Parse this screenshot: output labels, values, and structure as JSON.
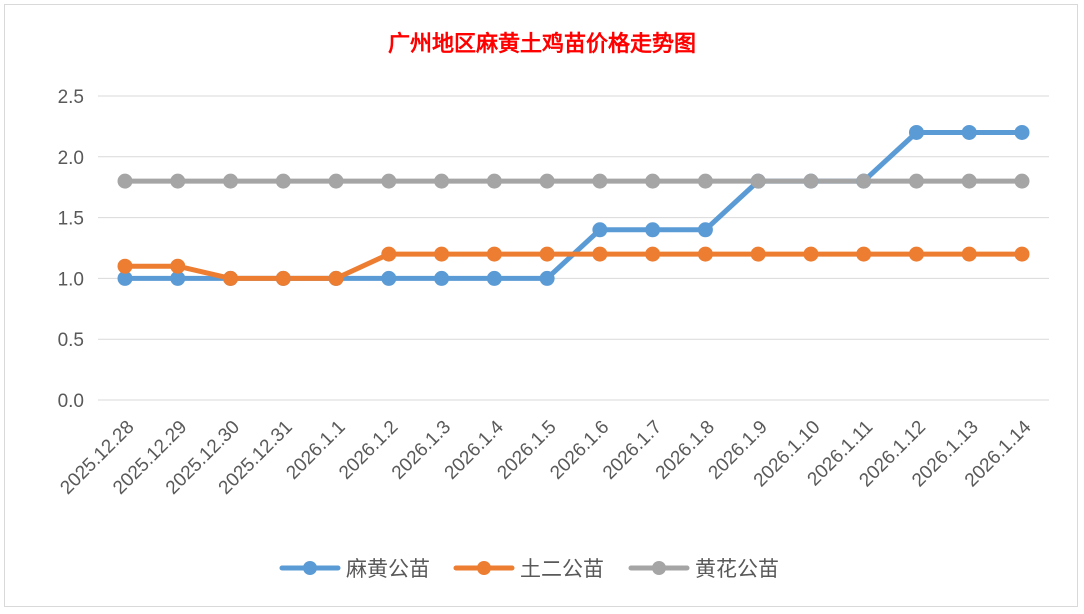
{
  "chart_data": {
    "type": "line",
    "title": "广州地区麻黄土鸡苗价格走势图",
    "xlabel": "",
    "ylabel": "",
    "ylim": [
      0,
      2.5
    ],
    "yticks": [
      "0.0",
      "0.5",
      "1.0",
      "1.5",
      "2.0",
      "2.5"
    ],
    "grid": true,
    "legend_position": "bottom",
    "categories": [
      "2025.12.28",
      "2025.12.29",
      "2025.12.30",
      "2025.12.31",
      "2026.1.1",
      "2026.1.2",
      "2026.1.3",
      "2026.1.4",
      "2026.1.5",
      "2026.1.6",
      "2026.1.7",
      "2026.1.8",
      "2026.1.9",
      "2026.1.10",
      "2026.1.11",
      "2026.1.12",
      "2026.1.13",
      "2026.1.14"
    ],
    "series": [
      {
        "name": "麻黄公苗",
        "color": "#5b9bd5",
        "values": [
          1.0,
          1.0,
          1.0,
          1.0,
          1.0,
          1.0,
          1.0,
          1.0,
          1.0,
          1.4,
          1.4,
          1.4,
          1.8,
          1.8,
          1.8,
          2.2,
          2.2,
          2.2
        ]
      },
      {
        "name": "土二公苗",
        "color": "#ed7d31",
        "values": [
          1.1,
          1.1,
          1.0,
          1.0,
          1.0,
          1.2,
          1.2,
          1.2,
          1.2,
          1.2,
          1.2,
          1.2,
          1.2,
          1.2,
          1.2,
          1.2,
          1.2,
          1.2
        ]
      },
      {
        "name": "黄花公苗",
        "color": "#a5a5a5",
        "values": [
          1.8,
          1.8,
          1.8,
          1.8,
          1.8,
          1.8,
          1.8,
          1.8,
          1.8,
          1.8,
          1.8,
          1.8,
          1.8,
          1.8,
          1.8,
          1.8,
          1.8,
          1.8
        ]
      }
    ]
  }
}
